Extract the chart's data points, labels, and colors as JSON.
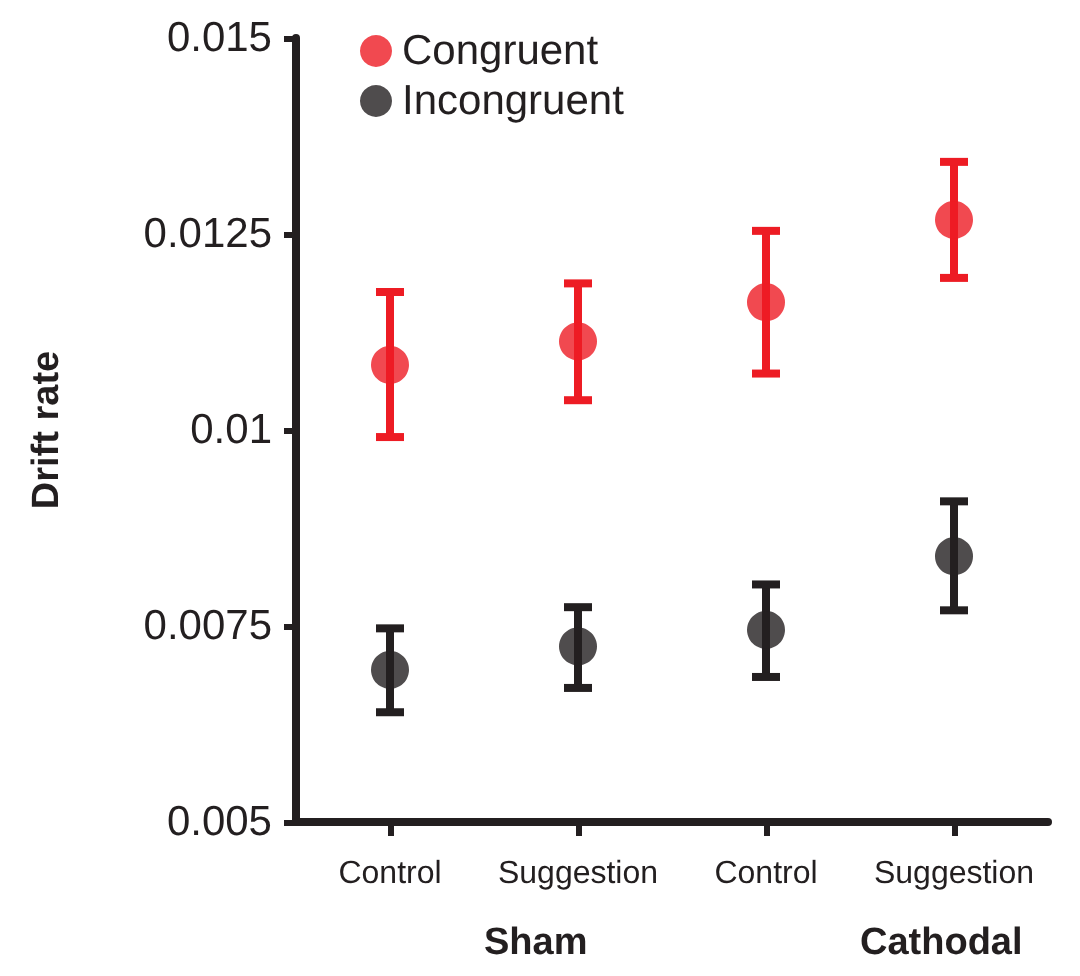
{
  "chart_data": {
    "type": "scatter",
    "ylabel": "Drift rate",
    "categories": [
      "Control",
      "Suggestion",
      "Control",
      "Suggestion"
    ],
    "series": [
      {
        "name": "Congruent",
        "color": "#ed1c24",
        "values": [
          0.01083,
          0.01113,
          0.01163,
          0.01268
        ],
        "errors": [
          [
            0.00991,
            0.01176
          ],
          [
            0.01038,
            0.01187
          ],
          [
            0.01072,
            0.01254
          ],
          [
            0.01194,
            0.01342
          ]
        ]
      },
      {
        "name": "Incongruent",
        "color": "#231f20",
        "values": [
          0.00694,
          0.00724,
          0.00745,
          0.00839
        ],
        "errors": [
          [
            0.0064,
            0.00747
          ],
          [
            0.00671,
            0.00774
          ],
          [
            0.00685,
            0.00803
          ],
          [
            0.0077,
            0.00909
          ]
        ]
      }
    ],
    "ylim": [
      0.005,
      0.015
    ],
    "yticks": [
      0.005,
      0.0075,
      0.01,
      0.0125,
      0.015
    ],
    "annotations": [
      "Sham",
      "Cathodal"
    ],
    "legend": "top left",
    "marker": "circle",
    "grid": false
  }
}
